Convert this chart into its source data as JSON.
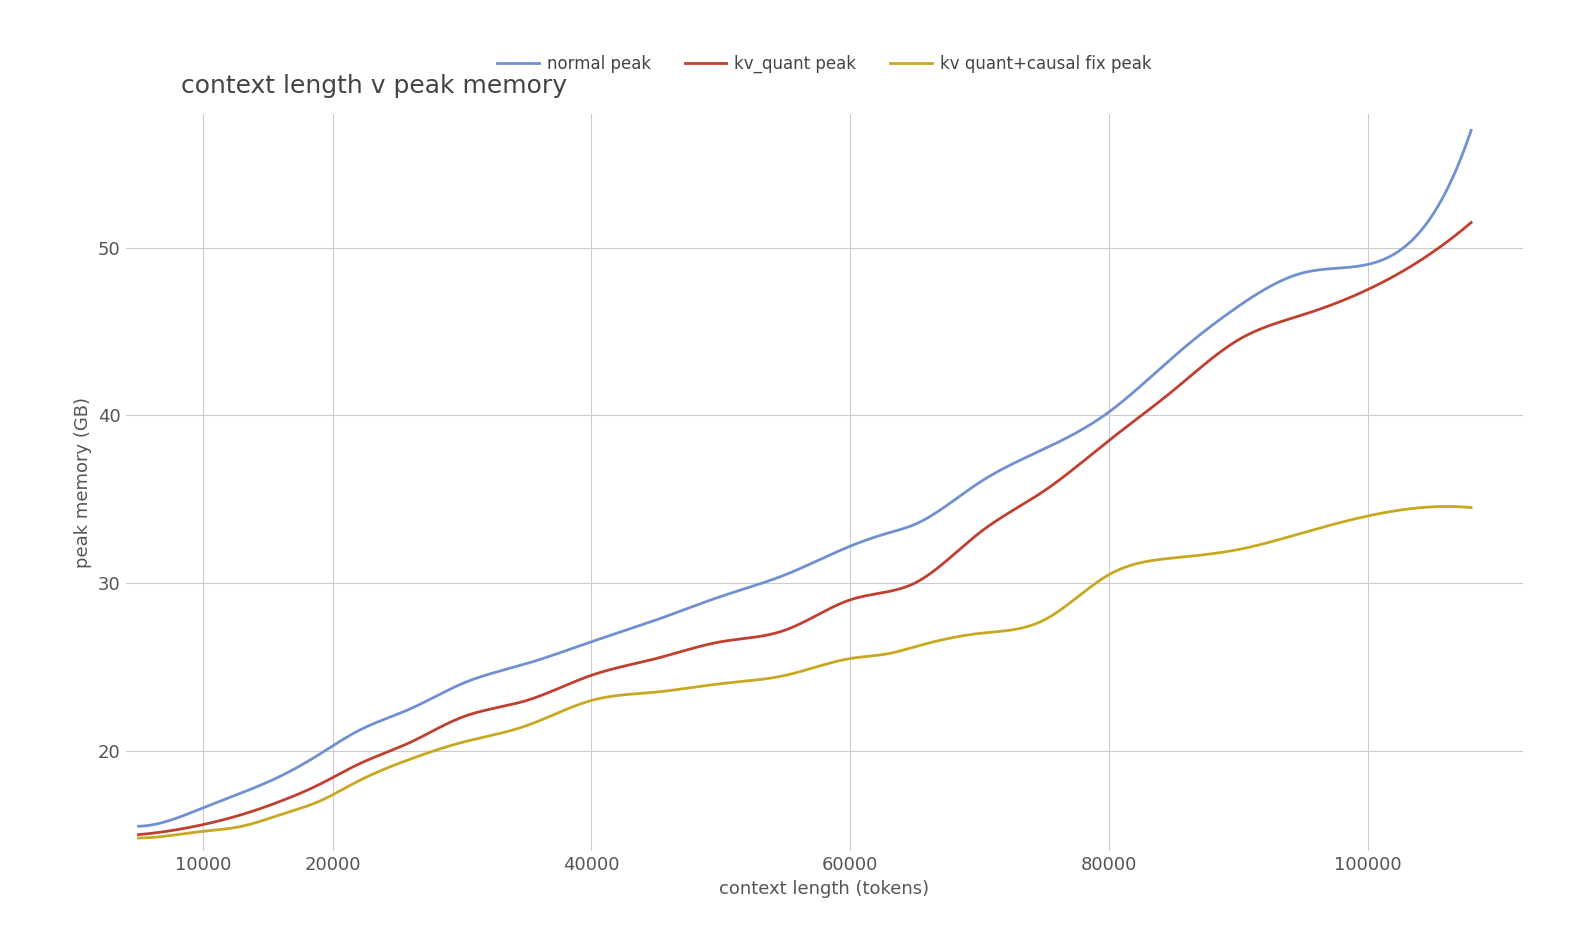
{
  "title": "context length v peak memory",
  "xlabel": "context length (tokens)",
  "ylabel": "peak memory (GB)",
  "background_color": "#ffffff",
  "plot_bg_color": "#ffffff",
  "grid_color": "#cccccc",
  "series": [
    {
      "label": "normal peak",
      "color": "#7090d0",
      "x": [
        5000,
        8000,
        10000,
        13000,
        16000,
        19000,
        22000,
        26000,
        30000,
        35000,
        40000,
        45000,
        50000,
        55000,
        60000,
        63000,
        65000,
        70000,
        75000,
        80000,
        85000,
        90000,
        95000,
        100000,
        108000
      ],
      "y": [
        15.5,
        16.0,
        16.6,
        17.5,
        18.5,
        19.8,
        21.2,
        22.5,
        24.0,
        25.2,
        26.5,
        27.8,
        29.2,
        30.5,
        32.2,
        33.0,
        33.5,
        36.0,
        38.0,
        40.2,
        43.5,
        46.5,
        48.5,
        49.0,
        57.0
      ]
    },
    {
      "label": "kv_quant peak",
      "color": "#c04030",
      "x": [
        5000,
        8000,
        10000,
        13000,
        16000,
        19000,
        22000,
        26000,
        30000,
        35000,
        40000,
        45000,
        50000,
        55000,
        60000,
        63000,
        65000,
        70000,
        75000,
        80000,
        85000,
        90000,
        95000,
        100000,
        108000
      ],
      "y": [
        15.0,
        15.3,
        15.6,
        16.2,
        17.0,
        18.0,
        19.2,
        20.5,
        22.0,
        23.0,
        24.5,
        25.5,
        26.5,
        27.2,
        29.0,
        29.5,
        30.0,
        33.0,
        35.5,
        38.5,
        41.5,
        44.5,
        46.0,
        47.5,
        51.5
      ]
    },
    {
      "label": "kv quant+causal fix peak",
      "color": "#c8a820",
      "x": [
        5000,
        8000,
        10000,
        13000,
        16000,
        19000,
        22000,
        26000,
        30000,
        35000,
        40000,
        45000,
        50000,
        55000,
        60000,
        63000,
        65000,
        70000,
        75000,
        80000,
        85000,
        90000,
        95000,
        100000,
        108000
      ],
      "y": [
        14.8,
        15.0,
        15.2,
        15.5,
        16.2,
        17.0,
        18.2,
        19.5,
        20.5,
        21.5,
        23.0,
        23.5,
        24.0,
        24.5,
        25.5,
        25.8,
        26.2,
        27.0,
        27.8,
        30.5,
        31.5,
        32.0,
        33.0,
        34.0,
        34.5
      ]
    }
  ],
  "xlim": [
    4000,
    112000
  ],
  "ylim": [
    14,
    58
  ],
  "xticks": [
    10000,
    20000,
    40000,
    60000,
    80000,
    100000
  ],
  "yticks": [
    20,
    30,
    40,
    50
  ],
  "title_fontsize": 18,
  "label_fontsize": 13,
  "tick_fontsize": 13,
  "legend_fontsize": 12,
  "linewidth": 2.0
}
